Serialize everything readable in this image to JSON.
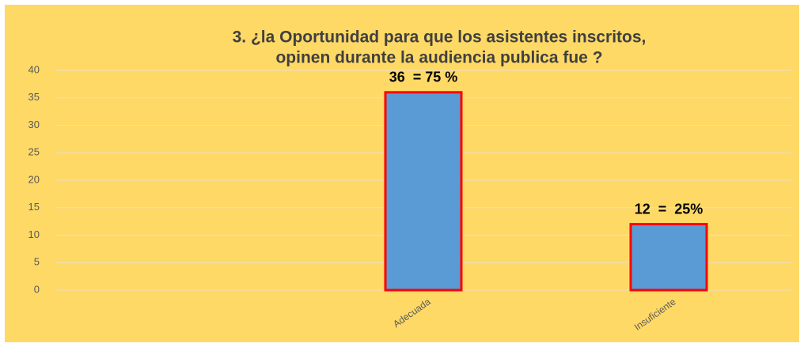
{
  "chart_data": {
    "type": "bar",
    "title": [
      "3. ¿la Oportunidad para que los asistentes inscritos,",
      "opinen durante la audiencia publica fue ?"
    ],
    "categories": [
      null,
      "Adecuada",
      "Insuficiente"
    ],
    "values": [
      null,
      36,
      12
    ],
    "value_labels": [
      null,
      "36  = 75 %",
      "12  =  25%"
    ],
    "color": "#5b9bd5",
    "edgecolor": "#ff0000",
    "ylim": [
      0,
      40
    ],
    "yticks": [
      0,
      5,
      10,
      15,
      20,
      25,
      30,
      35,
      40
    ],
    "grid": true
  }
}
